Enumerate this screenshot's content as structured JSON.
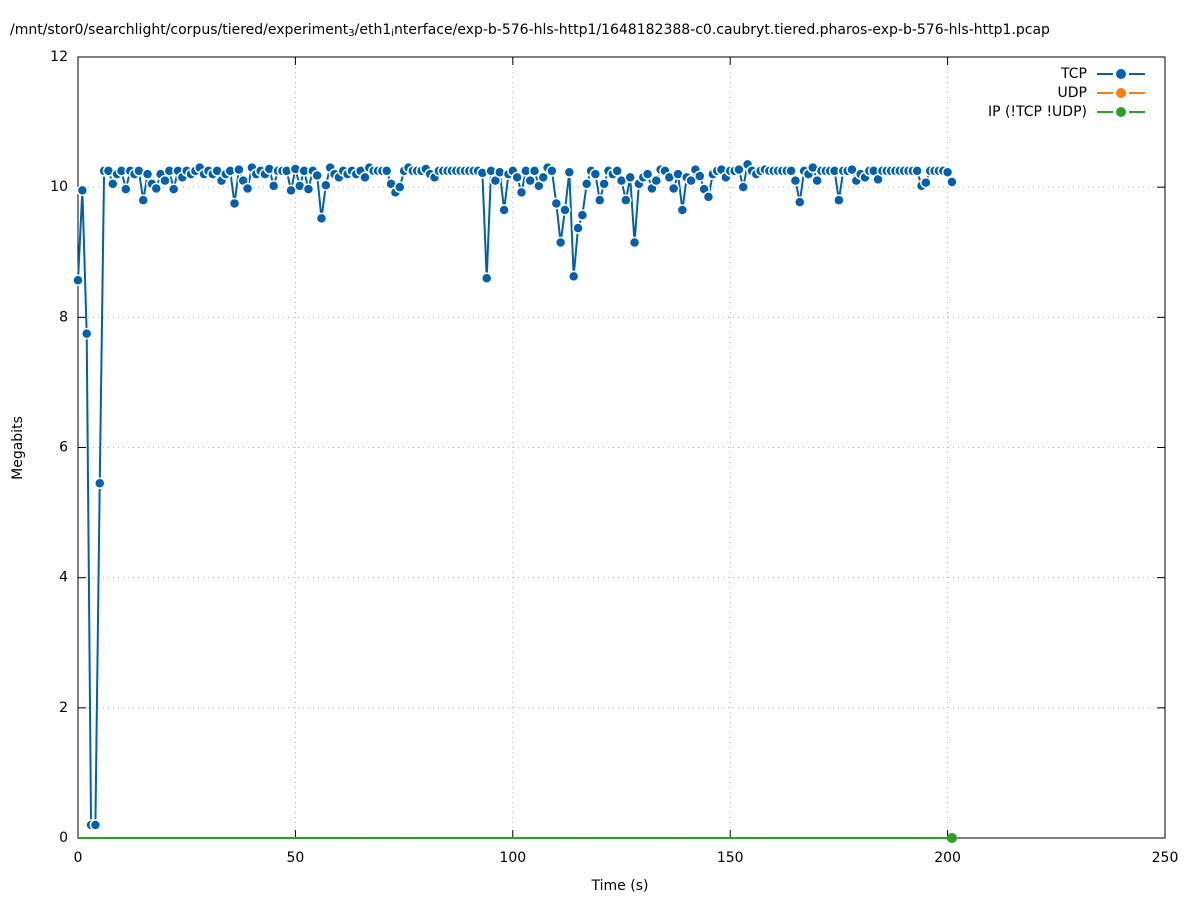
{
  "chart_data": {
    "type": "line",
    "title": [
      "/mnt/stor0/searchlight/corpus/tiered/experiment",
      "3",
      "/eth1",
      "i",
      "nterface/exp-b-576-hls-http1/1648182388-c0.caubryt.tiered.pharos-exp-b-576-hls-http1.pcap"
    ],
    "x_label": "Time (s)",
    "y_label": "Megabits",
    "xlim": [
      0,
      250
    ],
    "xticks": [
      0,
      50,
      100,
      150,
      200,
      250
    ],
    "ylim": [
      0,
      12
    ],
    "yticks": [
      0,
      2,
      4,
      6,
      8,
      10,
      12
    ],
    "grid": true,
    "legend": "top-right",
    "x": [
      0,
      1,
      2,
      3,
      4,
      5,
      6,
      7,
      8,
      9,
      10,
      11,
      12,
      13,
      14,
      15,
      16,
      17,
      18,
      19,
      20,
      21,
      22,
      23,
      24,
      25,
      26,
      27,
      28,
      29,
      30,
      31,
      32,
      33,
      34,
      35,
      36,
      37,
      38,
      39,
      40,
      41,
      42,
      43,
      44,
      45,
      46,
      47,
      48,
      49,
      50,
      51,
      52,
      53,
      54,
      55,
      56,
      57,
      58,
      59,
      60,
      61,
      62,
      63,
      64,
      65,
      66,
      67,
      68,
      69,
      70,
      71,
      72,
      73,
      74,
      75,
      76,
      77,
      78,
      79,
      80,
      81,
      82,
      83,
      84,
      85,
      86,
      87,
      88,
      89,
      90,
      91,
      92,
      93,
      94,
      95,
      96,
      97,
      98,
      99,
      100,
      101,
      102,
      103,
      104,
      105,
      106,
      107,
      108,
      109,
      110,
      111,
      112,
      113,
      114,
      115,
      116,
      117,
      118,
      119,
      120,
      121,
      122,
      123,
      124,
      125,
      126,
      127,
      128,
      129,
      130,
      131,
      132,
      133,
      134,
      135,
      136,
      137,
      138,
      139,
      140,
      141,
      142,
      143,
      144,
      145,
      146,
      147,
      148,
      149,
      150,
      151,
      152,
      153,
      154,
      155,
      156,
      157,
      158,
      159,
      160,
      161,
      162,
      163,
      164,
      165,
      166,
      167,
      168,
      169,
      170,
      171,
      172,
      173,
      174,
      175,
      176,
      177,
      178,
      179,
      180,
      181,
      182,
      183,
      184,
      185,
      186,
      187,
      188,
      189,
      190,
      191,
      192,
      193,
      194,
      195,
      196,
      197,
      198,
      199,
      200,
      201
    ],
    "series": [
      {
        "name": "TCP",
        "color": "#0060ad",
        "values": [
          8.57,
          9.95,
          7.75,
          0.2,
          0.2,
          5.45,
          10.25,
          10.25,
          10.05,
          10.2,
          10.25,
          9.97,
          10.25,
          10.2,
          10.25,
          9.8,
          10.2,
          10.05,
          9.98,
          10.2,
          10.1,
          10.25,
          9.97,
          10.25,
          10.15,
          10.25,
          10.2,
          10.25,
          10.3,
          10.2,
          10.25,
          10.2,
          10.25,
          10.1,
          10.2,
          10.25,
          9.75,
          10.27,
          10.1,
          9.98,
          10.3,
          10.2,
          10.25,
          10.2,
          10.28,
          10.02,
          10.25,
          10.25,
          10.25,
          9.95,
          10.28,
          10.02,
          10.25,
          9.97,
          10.25,
          10.18,
          9.52,
          10.03,
          10.3,
          10.2,
          10.15,
          10.25,
          10.2,
          10.25,
          10.2,
          10.25,
          10.15,
          10.3,
          10.25,
          10.25,
          10.25,
          10.25,
          10.05,
          9.92,
          10.0,
          10.25,
          10.3,
          10.25,
          10.25,
          10.25,
          10.28,
          10.2,
          10.15,
          10.25,
          10.25,
          10.25,
          10.25,
          10.25,
          10.25,
          10.25,
          10.25,
          10.25,
          10.25,
          10.22,
          8.6,
          10.25,
          10.1,
          10.23,
          9.65,
          10.2,
          10.25,
          10.15,
          9.92,
          10.25,
          10.1,
          10.25,
          10.02,
          10.15,
          10.3,
          10.25,
          9.75,
          9.15,
          9.65,
          10.23,
          8.63,
          9.37,
          9.57,
          10.05,
          10.25,
          10.2,
          9.8,
          10.05,
          10.25,
          10.2,
          10.25,
          10.1,
          9.8,
          10.15,
          9.15,
          10.05,
          10.15,
          10.2,
          9.98,
          10.1,
          10.27,
          10.25,
          10.15,
          9.98,
          10.2,
          9.65,
          10.15,
          10.1,
          10.27,
          10.17,
          9.97,
          9.85,
          10.2,
          10.25,
          10.27,
          10.15,
          10.25,
          10.25,
          10.27,
          10.0,
          10.35,
          10.25,
          10.2,
          10.25,
          10.27,
          10.25,
          10.25,
          10.25,
          10.25,
          10.25,
          10.25,
          10.1,
          9.77,
          10.25,
          10.2,
          10.3,
          10.1,
          10.25,
          10.25,
          10.25,
          10.25,
          9.8,
          10.25,
          10.25,
          10.27,
          10.1,
          10.2,
          10.15,
          10.25,
          10.25,
          10.12,
          10.25,
          10.25,
          10.25,
          10.25,
          10.25,
          10.25,
          10.25,
          10.25,
          10.25,
          10.02,
          10.07,
          10.25,
          10.25,
          10.25,
          10.25,
          10.23,
          10.08
        ]
      },
      {
        "name": "UDP",
        "color": "#ff7f0e",
        "values": [
          0,
          0,
          0,
          0,
          0,
          0,
          0,
          0,
          0,
          0,
          0,
          0,
          0,
          0,
          0,
          0,
          0,
          0,
          0,
          0,
          0,
          0,
          0,
          0,
          0,
          0,
          0,
          0,
          0,
          0,
          0,
          0,
          0,
          0,
          0,
          0,
          0,
          0,
          0,
          0,
          0,
          0,
          0,
          0,
          0,
          0,
          0,
          0,
          0,
          0,
          0,
          0,
          0,
          0,
          0,
          0,
          0,
          0,
          0,
          0,
          0,
          0,
          0,
          0,
          0,
          0,
          0,
          0,
          0,
          0,
          0,
          0,
          0,
          0,
          0,
          0,
          0,
          0,
          0,
          0,
          0,
          0,
          0,
          0,
          0,
          0,
          0,
          0,
          0,
          0,
          0,
          0,
          0,
          0,
          0,
          0,
          0,
          0,
          0,
          0,
          0,
          0,
          0,
          0,
          0,
          0,
          0,
          0,
          0,
          0,
          0,
          0,
          0,
          0,
          0,
          0,
          0,
          0,
          0,
          0,
          0,
          0,
          0,
          0,
          0,
          0,
          0,
          0,
          0,
          0,
          0,
          0,
          0,
          0,
          0,
          0,
          0,
          0,
          0,
          0,
          0,
          0,
          0,
          0,
          0,
          0,
          0,
          0,
          0,
          0,
          0,
          0,
          0,
          0,
          0,
          0,
          0,
          0,
          0,
          0,
          0,
          0,
          0,
          0,
          0,
          0,
          0,
          0,
          0,
          0,
          0,
          0,
          0,
          0,
          0,
          0,
          0,
          0,
          0,
          0,
          0,
          0,
          0,
          0,
          0,
          0,
          0,
          0,
          0,
          0,
          0,
          0,
          0,
          0,
          0,
          0,
          0,
          0,
          0,
          0,
          0,
          0
        ]
      },
      {
        "name": "IP (!TCP  !UDP)",
        "color": "#2ca02c",
        "values": [
          0,
          0,
          0,
          0,
          0,
          0,
          0,
          0,
          0,
          0,
          0,
          0,
          0,
          0,
          0,
          0,
          0,
          0,
          0,
          0,
          0,
          0,
          0,
          0,
          0,
          0,
          0,
          0,
          0,
          0,
          0,
          0,
          0,
          0,
          0,
          0,
          0,
          0,
          0,
          0,
          0,
          0,
          0,
          0,
          0,
          0,
          0,
          0,
          0,
          0,
          0,
          0,
          0,
          0,
          0,
          0,
          0,
          0,
          0,
          0,
          0,
          0,
          0,
          0,
          0,
          0,
          0,
          0,
          0,
          0,
          0,
          0,
          0,
          0,
          0,
          0,
          0,
          0,
          0,
          0,
          0,
          0,
          0,
          0,
          0,
          0,
          0,
          0,
          0,
          0,
          0,
          0,
          0,
          0,
          0,
          0,
          0,
          0,
          0,
          0,
          0,
          0,
          0,
          0,
          0,
          0,
          0,
          0,
          0,
          0,
          0,
          0,
          0,
          0,
          0,
          0,
          0,
          0,
          0,
          0,
          0,
          0,
          0,
          0,
          0,
          0,
          0,
          0,
          0,
          0,
          0,
          0,
          0,
          0,
          0,
          0,
          0,
          0,
          0,
          0,
          0,
          0,
          0,
          0,
          0,
          0,
          0,
          0,
          0,
          0,
          0,
          0,
          0,
          0,
          0,
          0,
          0,
          0,
          0,
          0,
          0,
          0,
          0,
          0,
          0,
          0,
          0,
          0,
          0,
          0,
          0,
          0,
          0,
          0,
          0,
          0,
          0,
          0,
          0,
          0,
          0,
          0,
          0,
          0,
          0,
          0,
          0,
          0,
          0,
          0,
          0,
          0,
          0,
          0,
          0,
          0,
          0,
          0,
          0,
          0,
          0,
          0
        ]
      }
    ]
  }
}
